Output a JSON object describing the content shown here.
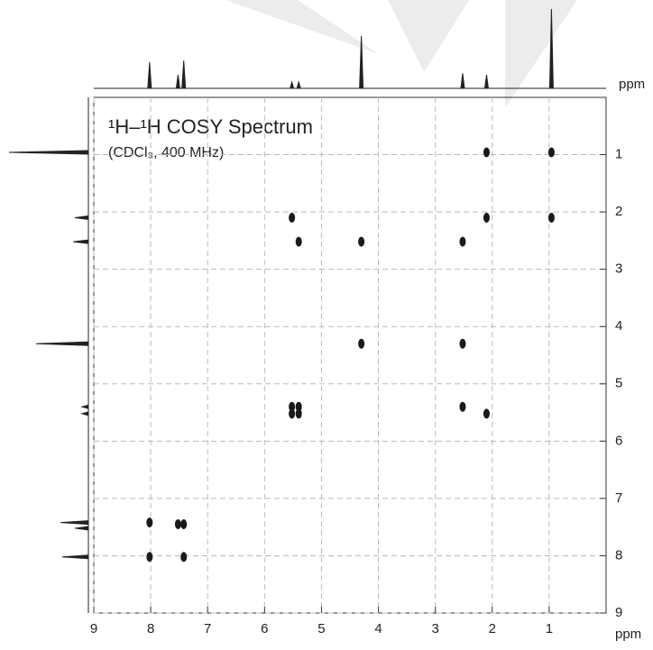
{
  "chart_data": {
    "type": "scatter",
    "title": "¹H–¹H COSY Spectrum",
    "subtitle": "(CDCl₃, 400 MHz)",
    "x_label": "ppm",
    "y_label": "ppm",
    "xlim": [
      9,
      0
    ],
    "xticks": [
      1,
      2,
      3,
      4,
      5,
      6,
      7,
      8,
      9
    ],
    "ylim": [
      0,
      9
    ],
    "yticks": [
      1,
      2,
      3,
      4,
      5,
      6,
      7,
      8,
      9
    ],
    "grid": true,
    "color": "#1a1a1a",
    "x": [
      0.96,
      2.1,
      0.96,
      2.1,
      5.52,
      5.4,
      4.3,
      2.52,
      4.3,
      2.52,
      5.52,
      5.4,
      5.52,
      5.4,
      2.52,
      2.1,
      8.02,
      7.52,
      7.42,
      8.02,
      7.42
    ],
    "y": [
      0.96,
      0.96,
      2.1,
      2.1,
      2.1,
      2.52,
      2.52,
      2.52,
      4.3,
      4.3,
      5.4,
      5.4,
      5.52,
      5.52,
      5.4,
      5.52,
      7.42,
      7.45,
      7.45,
      8.02,
      8.02
    ],
    "projection": {
      "x": [
        8.02,
        7.52,
        7.42,
        5.52,
        5.4,
        4.3,
        2.52,
        2.1,
        0.96
      ],
      "intensity": [
        33,
        17,
        35,
        8,
        8,
        66,
        19,
        17,
        100
      ],
      "intensity_lim": [
        0,
        100
      ]
    }
  }
}
